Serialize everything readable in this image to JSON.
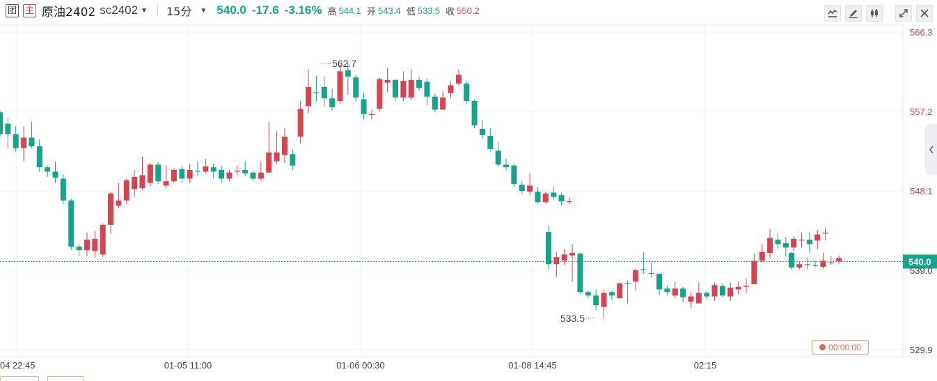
{
  "header": {
    "badge1": "团",
    "badge2": "主",
    "name": "原油2402",
    "code": "sc2402",
    "period": "15分",
    "price": "540.0",
    "change": "-17.6",
    "change_pct": "-3.16%",
    "high_label": "高",
    "high": "544.1",
    "open_label": "开",
    "open": "543.4",
    "low_label": "低",
    "low": "533.5",
    "close_label": "收",
    "close": "550.2"
  },
  "toolbar": {
    "buttons": [
      "indicator-icon",
      "draw-pencil-icon",
      "candle-type-icon",
      "expand-icon",
      "close-icon"
    ]
  },
  "timer": "00:00:00",
  "colors": {
    "up": "#d9434f",
    "down": "#14a58c",
    "grid": "#eef0f3",
    "axis_text": "#444444",
    "price_line": "#14a58c",
    "current_tag_bg": "#14a58c"
  },
  "chart_data": {
    "type": "candlestick",
    "title": "",
    "x_ticks": [
      "-04 22:45",
      "01-05 11:00",
      "01-06 00:30",
      "01-08 14:45",
      "02:15"
    ],
    "y_ticks": [
      566.3,
      557.2,
      548.1,
      539.0,
      529.9
    ],
    "ylim": [
      529.9,
      566.3
    ],
    "grid": true,
    "current_price": 540.0,
    "current_label": "540.0",
    "annotations": [
      {
        "text": "562.7",
        "value": 562.7
      },
      {
        "text": "533.5",
        "value": 533.5
      }
    ],
    "segments": [
      {
        "candles": [
          [
            557.1,
            554.6,
            557.3,
            554.3
          ],
          [
            555.8,
            554.6,
            556.5,
            553.0
          ],
          [
            554.6,
            553.0,
            555.5,
            552.6
          ],
          [
            553.0,
            554.2,
            555.5,
            551.5
          ],
          [
            554.2,
            553.2,
            556.0,
            553.0
          ],
          [
            553.2,
            550.8,
            554.0,
            550.3
          ],
          [
            550.8,
            550.3,
            551.0,
            549.7
          ],
          [
            550.3,
            549.6,
            551.5,
            549.0
          ],
          [
            549.5,
            547.0,
            550.0,
            546.6
          ],
          [
            547.0,
            541.7,
            547.2,
            541.3
          ],
          [
            541.7,
            541.3,
            542.0,
            540.6
          ],
          [
            541.3,
            542.5,
            543.3,
            540.6
          ],
          [
            541.2,
            542.6,
            543.5,
            540.4
          ],
          [
            540.8,
            544.2,
            544.4,
            540.5
          ],
          [
            544.2,
            547.8,
            548.0,
            543.2
          ],
          [
            546.4,
            547.0,
            549.0,
            546.1
          ],
          [
            547.0,
            549.3,
            549.5,
            546.6
          ],
          [
            548.3,
            549.7,
            550.5,
            547.4
          ],
          [
            548.4,
            549.9,
            552.0,
            548.2
          ],
          [
            549.0,
            551.1,
            551.3,
            548.6
          ],
          [
            551.1,
            549.2,
            551.4,
            548.9
          ],
          [
            548.7,
            549.2,
            551.0,
            548.4
          ],
          [
            549.2,
            550.5,
            550.7,
            549.0
          ],
          [
            550.6,
            549.5,
            551.0,
            549.0
          ],
          [
            549.5,
            550.5,
            551.2,
            549.0
          ],
          [
            550.4,
            550.3,
            551.5,
            549.8
          ],
          [
            550.3,
            550.9,
            551.8,
            550.1
          ],
          [
            550.8,
            550.3,
            551.2,
            549.5
          ],
          [
            550.5,
            549.5,
            551.0,
            549.0
          ],
          [
            549.5,
            550.2,
            550.5,
            549.2
          ],
          [
            550.3,
            550.4,
            551.0,
            549.9
          ],
          [
            550.5,
            550.1,
            551.5,
            549.8
          ],
          [
            550.2,
            549.5,
            550.5,
            549.2
          ],
          [
            549.5,
            550.2,
            551.5,
            549.3
          ],
          [
            550.2,
            552.5,
            556.0,
            551.5
          ],
          [
            551.5,
            552.5,
            555.0,
            551.2
          ],
          [
            552.2,
            554.3,
            555.3,
            551.3
          ],
          [
            552.3,
            551.0,
            552.8,
            550.5
          ],
          [
            554.3,
            557.5,
            558.4,
            553.5
          ],
          [
            557.8,
            560.0,
            562.0,
            557.0
          ],
          [
            559.4,
            559.3,
            561.3,
            558.4
          ],
          [
            560.0,
            558.7,
            561.2,
            557.7
          ],
          [
            558.7,
            557.7,
            559.8,
            557.3
          ],
          [
            558.4,
            561.8,
            562.6,
            558.1
          ],
          [
            561.9,
            561.2,
            562.7,
            559.1
          ],
          [
            561.1,
            558.8,
            561.4,
            558.3
          ],
          [
            558.6,
            556.9,
            559.3,
            556.3
          ],
          [
            556.9,
            556.9,
            557.4,
            556.3
          ],
          [
            557.5,
            560.9,
            561.1,
            557.2
          ],
          [
            560.5,
            560.8,
            562.2,
            559.4
          ],
          [
            560.8,
            558.8,
            560.9,
            558.4
          ],
          [
            558.8,
            560.7,
            561.8,
            558.4
          ],
          [
            558.8,
            560.8,
            562.0,
            558.5
          ],
          [
            560.8,
            559.9,
            561.2,
            559.6
          ],
          [
            560.6,
            558.9,
            561.0,
            557.9
          ],
          [
            558.9,
            557.4,
            559.2,
            557.1
          ],
          [
            557.4,
            558.8,
            559.5,
            557.4
          ],
          [
            559.3,
            560.2,
            560.7,
            558.7
          ],
          [
            560.4,
            561.4,
            562.0,
            560.2
          ],
          [
            560.4,
            558.4,
            560.6,
            558.1
          ],
          [
            558.4,
            555.6,
            558.6,
            555.3
          ],
          [
            555.2,
            554.5,
            556.2,
            554.1
          ],
          [
            554.4,
            552.9,
            555.3,
            552.6
          ],
          [
            552.7,
            551.1,
            553.7,
            550.9
          ],
          [
            551.1,
            550.8,
            551.8,
            550.4
          ],
          [
            551.0,
            548.9,
            551.2,
            548.6
          ],
          [
            548.8,
            548.1,
            549.2,
            547.8
          ],
          [
            548.0,
            548.7,
            550.1,
            547.6
          ],
          [
            548.0,
            546.8,
            548.5,
            546.6
          ],
          [
            546.8,
            547.8,
            548.0,
            546.6
          ],
          [
            547.9,
            547.4,
            548.6,
            547.1
          ],
          [
            547.6,
            546.9,
            547.9,
            546.5
          ],
          [
            546.9,
            546.9,
            547.4,
            546.6
          ]
        ]
      },
      {
        "candles": [
          [
            543.4,
            539.7,
            544.1,
            539.1
          ],
          [
            539.7,
            540.5,
            541.1,
            538.2
          ],
          [
            540.1,
            540.8,
            541.4,
            539.6
          ],
          [
            540.7,
            541.0,
            542.0,
            537.7
          ],
          [
            540.9,
            536.5,
            541.0,
            536.3
          ],
          [
            536.5,
            536.1,
            536.6,
            535.8
          ],
          [
            536.1,
            535.0,
            536.8,
            534.4
          ],
          [
            534.8,
            536.4,
            536.7,
            533.5
          ],
          [
            536.5,
            536.1,
            536.6,
            535.6
          ],
          [
            535.8,
            537.5,
            537.6,
            535.7
          ],
          [
            537.5,
            537.4,
            537.8,
            535.2
          ],
          [
            537.7,
            539.0,
            539.2,
            536.7
          ],
          [
            539.1,
            539.0,
            541.1,
            538.6
          ],
          [
            538.7,
            538.6,
            539.9,
            538.2
          ],
          [
            538.6,
            536.8,
            538.6,
            536.1
          ],
          [
            536.9,
            536.5,
            537.2,
            536.1
          ],
          [
            536.1,
            536.9,
            537.7,
            535.8
          ],
          [
            536.9,
            535.9,
            537.1,
            535.3
          ],
          [
            535.4,
            536.0,
            536.5,
            534.7
          ],
          [
            535.2,
            536.4,
            537.6,
            535.2
          ],
          [
            536.4,
            536.0,
            536.6,
            535.7
          ],
          [
            536.0,
            537.3,
            537.6,
            535.5
          ],
          [
            537.2,
            536.1,
            537.5,
            535.9
          ],
          [
            536.0,
            537.0,
            537.6,
            535.5
          ],
          [
            536.8,
            537.1,
            537.7,
            536.2
          ],
          [
            537.1,
            537.2,
            538.1,
            536.4
          ],
          [
            537.4,
            540.1,
            540.9,
            538.2
          ],
          [
            540.1,
            541.1,
            542.0,
            539.9
          ],
          [
            541.0,
            542.7,
            543.7,
            540.4
          ],
          [
            542.5,
            542.0,
            543.2,
            541.4
          ],
          [
            542.1,
            541.6,
            542.8,
            540.6
          ],
          [
            541.6,
            542.6,
            542.9,
            541.2
          ],
          [
            542.5,
            542.5,
            543.3,
            541.6
          ],
          [
            542.5,
            542.0,
            543.3,
            540.9
          ],
          [
            542.4,
            543.1,
            543.6,
            541.4
          ],
          [
            543.2,
            543.3,
            543.9,
            542.4
          ]
        ]
      },
      {
        "candles": [
          [
            541.0,
            539.3,
            541.1,
            539.1
          ],
          [
            539.3,
            539.7,
            540.1,
            539.1
          ],
          [
            539.7,
            539.6,
            540.4,
            539.1
          ],
          [
            539.6,
            539.5,
            540.1,
            539.3
          ],
          [
            539.4,
            540.1,
            541.0,
            539.2
          ],
          [
            539.9,
            539.9,
            540.6,
            539.6
          ],
          [
            540.0,
            540.4,
            540.7,
            539.7
          ]
        ]
      }
    ]
  }
}
